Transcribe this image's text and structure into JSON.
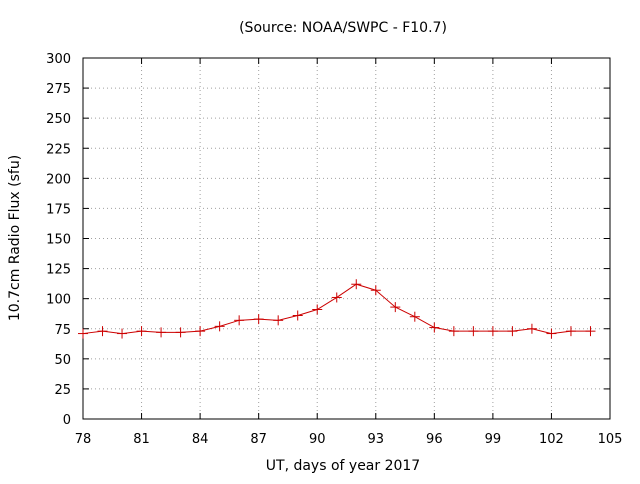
{
  "chart_data": {
    "type": "line",
    "title": "(Source: NOAA/SWPC - F10.7)",
    "xlabel": "UT, days of year 2017",
    "ylabel": "10.7cm Radio Flux (sfu)",
    "xlim": [
      78,
      105
    ],
    "ylim": [
      0,
      300
    ],
    "x_ticks": [
      78,
      81,
      84,
      87,
      90,
      93,
      96,
      99,
      102,
      105
    ],
    "y_ticks": [
      0,
      25,
      50,
      75,
      100,
      125,
      150,
      175,
      200,
      225,
      250,
      275,
      300
    ],
    "grid": true,
    "legend": "none",
    "line_color": "#cc0000",
    "series": [
      {
        "x": [
          78,
          79,
          80,
          81,
          82,
          83,
          84,
          85,
          86,
          87,
          88,
          89,
          90,
          91,
          92,
          93,
          94,
          95,
          96,
          97,
          98,
          99,
          100,
          101,
          102,
          103,
          104
        ],
        "values": [
          71,
          73,
          71,
          73,
          72,
          72,
          73,
          77,
          82,
          83,
          82,
          86,
          91,
          101,
          112,
          107,
          93,
          85,
          76,
          73,
          73,
          73,
          73,
          75,
          71,
          73,
          73
        ]
      }
    ]
  }
}
